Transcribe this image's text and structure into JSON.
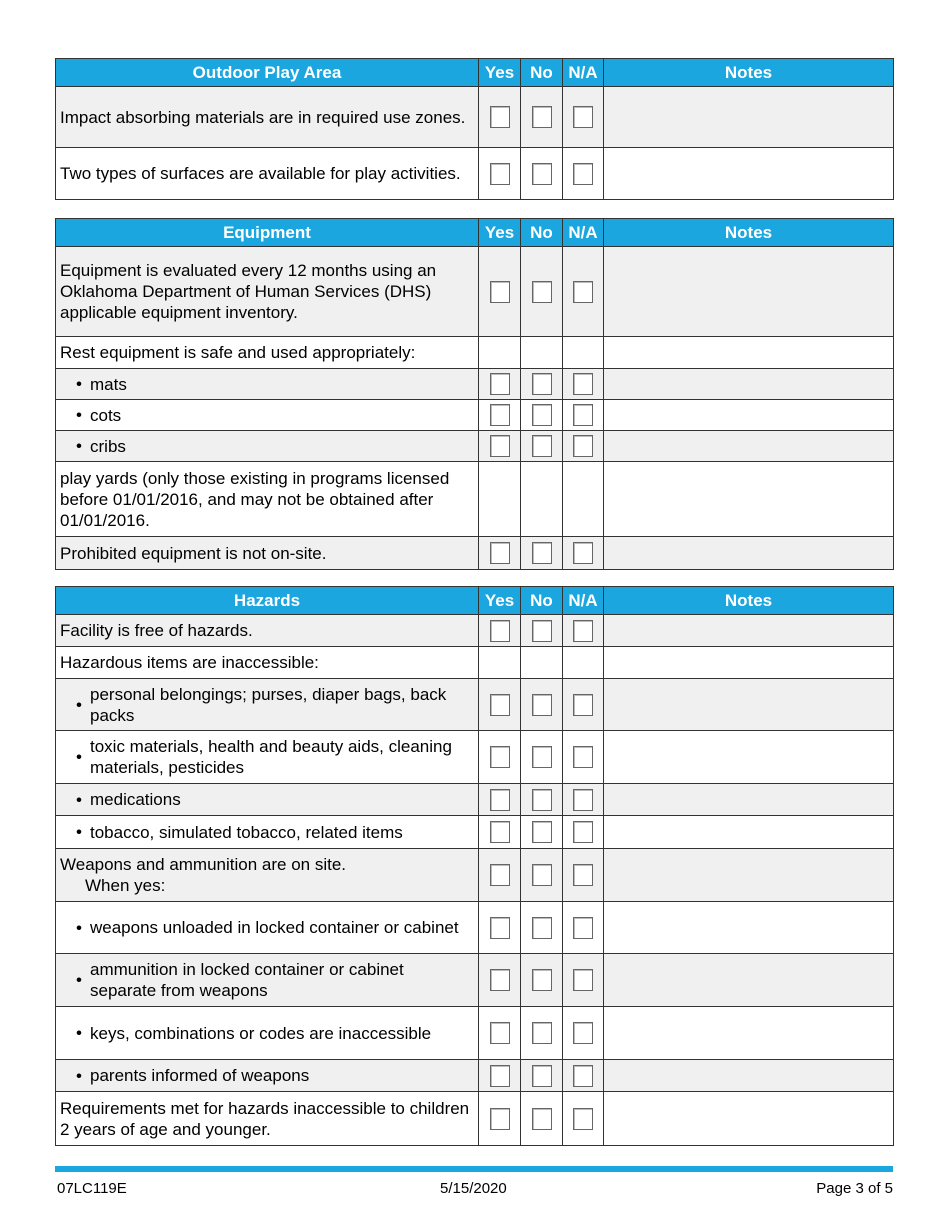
{
  "colors": {
    "header": "#1ca6df",
    "row_shade": "#f0f0f0"
  },
  "columns": {
    "yes": "Yes",
    "no": "No",
    "na": "N/A",
    "notes": "Notes"
  },
  "sections": [
    {
      "title": "Outdoor Play Area",
      "rows": [
        {
          "text": "Impact absorbing materials are in required use zones.",
          "checkboxes": true
        },
        {
          "text": "Two types of surfaces are available for play activities.",
          "checkboxes": true
        }
      ]
    },
    {
      "title": "Equipment",
      "rows": [
        {
          "text": "Equipment is evaluated every 12 months using an Oklahoma Department of Human Services (DHS) applicable equipment inventory.",
          "checkboxes": true
        },
        {
          "text": "Rest equipment is safe and used appropriately:",
          "checkboxes": false
        },
        {
          "text": "mats",
          "checkboxes": true,
          "bullet": true
        },
        {
          "text": "cots",
          "checkboxes": true,
          "bullet": true
        },
        {
          "text": "cribs",
          "checkboxes": true,
          "bullet": true
        },
        {
          "text": "play yards (only those existing in programs licensed before 01/01/2016, and may not be obtained after 01/01/2016.",
          "checkboxes": false
        },
        {
          "text": "Prohibited equipment is not on-site.",
          "checkboxes": true
        }
      ]
    },
    {
      "title": "Hazards",
      "rows": [
        {
          "text": "Facility is free of hazards.",
          "checkboxes": true
        },
        {
          "text": "Hazardous items are inaccessible:",
          "checkboxes": false
        },
        {
          "text": "personal belongings; purses, diaper bags, back packs",
          "checkboxes": true,
          "bullet": true
        },
        {
          "text": "toxic materials, health and beauty aids, cleaning materials, pesticides",
          "checkboxes": true,
          "bullet": true
        },
        {
          "text": "medications",
          "checkboxes": true,
          "bullet": true
        },
        {
          "text": "tobacco, simulated tobacco, related items",
          "checkboxes": true,
          "bullet": true
        },
        {
          "text": "Weapons and ammunition are on site.",
          "sub": "When yes:",
          "checkboxes": true
        },
        {
          "text": "weapons unloaded in locked container or cabinet",
          "checkboxes": true,
          "bullet": true
        },
        {
          "text": "ammunition in locked container or cabinet separate from weapons",
          "checkboxes": true,
          "bullet": true
        },
        {
          "text": "keys, combinations or codes are inaccessible",
          "checkboxes": true,
          "bullet": true
        },
        {
          "text": "parents informed of weapons",
          "checkboxes": true,
          "bullet": true
        },
        {
          "text": "Requirements met for hazards inaccessible to children 2 years of age and younger.",
          "checkboxes": true
        }
      ]
    }
  ],
  "footer": {
    "form_number": "07LC119E",
    "date": "5/15/2020",
    "page": "Page 3 of 5"
  }
}
